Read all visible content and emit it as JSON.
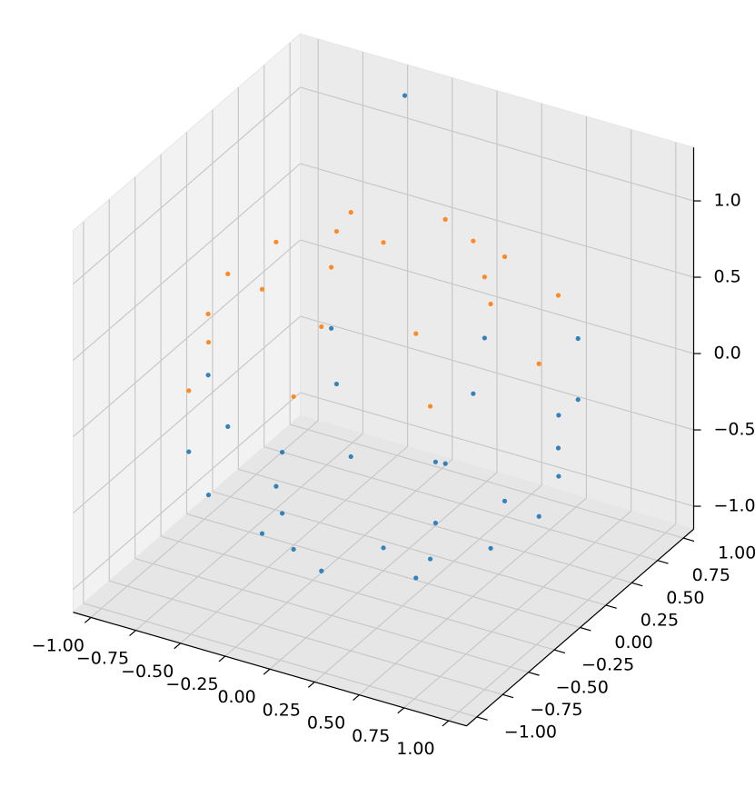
{
  "chart_data": {
    "type": "scatter3d",
    "xlim": [
      -1.1,
      1.1
    ],
    "ylim": [
      -1.1,
      1.1
    ],
    "zlim": [
      -1.15,
      1.35
    ],
    "xticks": [
      {
        "value": -1,
        "label": "−1.00"
      },
      {
        "value": -0.75,
        "label": "−0.75"
      },
      {
        "value": -0.5,
        "label": "−0.50"
      },
      {
        "value": -0.25,
        "label": "−0.25"
      },
      {
        "value": 0,
        "label": "0.00"
      },
      {
        "value": 0.25,
        "label": "0.25"
      },
      {
        "value": 0.5,
        "label": "0.50"
      },
      {
        "value": 0.75,
        "label": "0.75"
      },
      {
        "value": 1,
        "label": "1.00"
      }
    ],
    "yticks": [
      {
        "value": -1,
        "label": "−1.00"
      },
      {
        "value": -0.75,
        "label": "−0.75"
      },
      {
        "value": -0.5,
        "label": "−0.50"
      },
      {
        "value": -0.25,
        "label": "−0.25"
      },
      {
        "value": 0,
        "label": "0.00"
      },
      {
        "value": 0.25,
        "label": "0.25"
      },
      {
        "value": 0.5,
        "label": "0.50"
      },
      {
        "value": 0.75,
        "label": "0.75"
      },
      {
        "value": 1,
        "label": "1.00"
      }
    ],
    "zticks": [
      {
        "value": -1,
        "label": "−1.0"
      },
      {
        "value": -0.5,
        "label": "−0.5"
      },
      {
        "value": 0,
        "label": "0.0"
      },
      {
        "value": 0.5,
        "label": "0.5"
      },
      {
        "value": 1,
        "label": "1.0"
      }
    ],
    "grid": true,
    "series": [
      {
        "color": "#1f77b4",
        "x": [
          0.98,
          0.69,
          0.69,
          0,
          0.98,
          0.69,
          0,
          -0.69,
          -0.98,
          -0.69,
          0,
          0.69,
          0.87,
          0.62,
          0,
          -0.62,
          -0.87,
          -0.62,
          0,
          0.62,
          0.6,
          0.43,
          0,
          -0.43,
          -0.6,
          -0.43,
          0,
          0.43,
          0,
          -0.4
        ],
        "y": [
          0,
          0.69,
          -0.69,
          -0.98,
          0,
          0.69,
          0.98,
          0.69,
          0,
          -0.69,
          -0.98,
          -0.69,
          0,
          0.62,
          0.87,
          0.62,
          0,
          -0.62,
          -0.87,
          -0.62,
          0,
          0.43,
          0.6,
          0.43,
          0,
          -0.43,
          -0.6,
          -0.43,
          0,
          0.9
        ],
        "z": [
          0.2,
          0.2,
          0.2,
          0.2,
          -0.2,
          -0.2,
          -0.2,
          -0.2,
          -0.2,
          -0.2,
          -0.2,
          -0.2,
          -0.5,
          -0.5,
          -0.5,
          -0.5,
          -0.5,
          -0.5,
          -0.5,
          -0.5,
          -0.8,
          -0.8,
          -0.8,
          -0.8,
          -0.8,
          -0.8,
          -0.8,
          -0.8,
          -1,
          1.3
        ]
      },
      {
        "color": "#ff7f0e",
        "x": [
          0.6,
          0.43,
          0,
          -0.43,
          -0.6,
          -0.43,
          0,
          0.43,
          0.87,
          0.62,
          0,
          -0.62,
          -0.87,
          -0.62,
          0,
          0.62,
          -0.69,
          -0.98,
          -0.69,
          0,
          0
        ],
        "y": [
          0,
          0.43,
          0.6,
          0.43,
          0,
          -0.43,
          -0.6,
          -0.43,
          0,
          0.62,
          0.87,
          0.62,
          0,
          -0.62,
          -0.87,
          -0.62,
          0.69,
          0,
          -0.69,
          0.98,
          0
        ],
        "z": [
          0.8,
          0.8,
          0.8,
          0.8,
          0.8,
          0.8,
          0.8,
          0.8,
          0.5,
          0.5,
          0.5,
          0.5,
          0.5,
          0.5,
          0.5,
          0.5,
          0.2,
          0.2,
          0.2,
          0.2,
          1
        ]
      }
    ]
  }
}
